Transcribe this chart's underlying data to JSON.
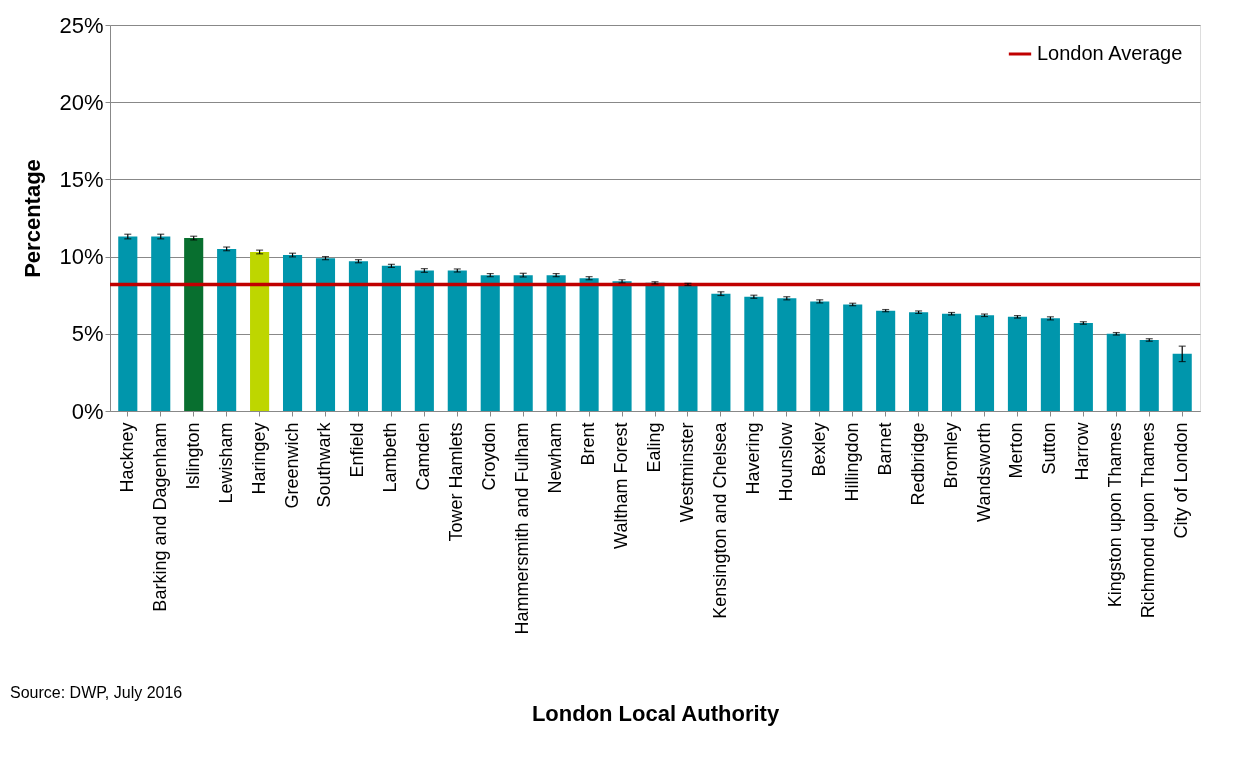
{
  "chart_data": {
    "type": "bar",
    "xlabel": "London Local Authority",
    "ylabel": "Percentage",
    "categories": [
      "Hackney",
      "Barking and Dagenham",
      "Islington",
      "Lewisham",
      "Haringey",
      "Greenwich",
      "Southwark",
      "Enfield",
      "Lambeth",
      "Camden",
      "Tower Hamlets",
      "Croydon",
      "Hammersmith and Fulham",
      "Newham",
      "Brent",
      "Waltham Forest",
      "Ealing",
      "Westminster",
      "Kensington and Chelsea",
      "Havering",
      "Hounslow",
      "Bexley",
      "Hillingdon",
      "Barnet",
      "Redbridge",
      "Bromley",
      "Wandsworth",
      "Merton",
      "Sutton",
      "Harrow",
      "Kingston upon Thames",
      "Richmond upon Thames",
      "City of London"
    ],
    "values": [
      11.3,
      11.3,
      11.2,
      10.5,
      10.3,
      10.1,
      9.9,
      9.7,
      9.4,
      9.1,
      9.1,
      8.8,
      8.8,
      8.8,
      8.6,
      8.4,
      8.3,
      8.2,
      7.6,
      7.4,
      7.3,
      7.1,
      6.9,
      6.5,
      6.4,
      6.3,
      6.2,
      6.1,
      6.0,
      5.7,
      5.0,
      4.6,
      3.7
    ],
    "errors": [
      0.15,
      0.15,
      0.12,
      0.12,
      0.12,
      0.12,
      0.1,
      0.1,
      0.1,
      0.12,
      0.1,
      0.1,
      0.12,
      0.1,
      0.1,
      0.1,
      0.07,
      0.07,
      0.12,
      0.1,
      0.1,
      0.1,
      0.08,
      0.07,
      0.08,
      0.08,
      0.08,
      0.08,
      0.1,
      0.08,
      0.08,
      0.08,
      0.5
    ],
    "colors": [
      "#0096ac",
      "#0096ac",
      "#086f2f",
      "#0096ac",
      "#bed600",
      "#0096ac",
      "#0096ac",
      "#0096ac",
      "#0096ac",
      "#0096ac",
      "#0096ac",
      "#0096ac",
      "#0096ac",
      "#0096ac",
      "#0096ac",
      "#0096ac",
      "#0096ac",
      "#0096ac",
      "#0096ac",
      "#0096ac",
      "#0096ac",
      "#0096ac",
      "#0096ac",
      "#0096ac",
      "#0096ac",
      "#0096ac",
      "#0096ac",
      "#0096ac",
      "#0096ac",
      "#0096ac",
      "#0096ac",
      "#0096ac",
      "#0096ac"
    ],
    "ylim": [
      0,
      25
    ],
    "yticks": [
      {
        "value": 0,
        "label": "0%"
      },
      {
        "value": 5,
        "label": "5%"
      },
      {
        "value": 10,
        "label": "10%"
      },
      {
        "value": 15,
        "label": "15%"
      },
      {
        "value": 20,
        "label": "20%"
      },
      {
        "value": 25,
        "label": "25%"
      }
    ],
    "ref_lines": [
      {
        "axis": "y",
        "value": 8.2,
        "label": "London Average",
        "color": "#c00000"
      }
    ],
    "grid": "y",
    "legend": "top right",
    "annotations": [
      "Source: DWP, July 2016"
    ]
  }
}
